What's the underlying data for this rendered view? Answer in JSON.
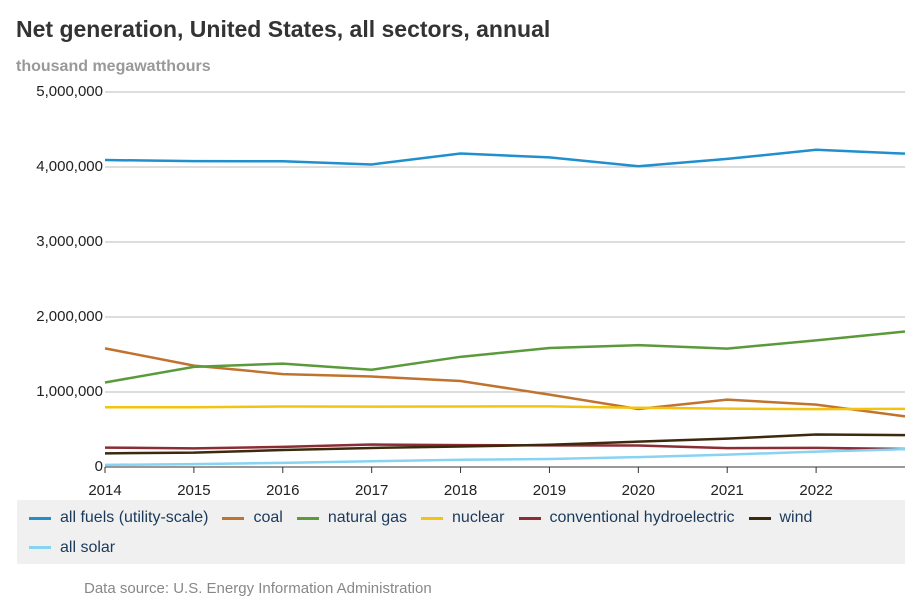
{
  "chart_data": {
    "type": "line",
    "title": "Net generation, United States, all sectors, annual",
    "subtitle": "thousand megawatthours",
    "source": "Data source: U.S. Energy Information Administration",
    "x": [
      2014,
      2015,
      2016,
      2017,
      2018,
      2019,
      2020,
      2021,
      2022,
      2023
    ],
    "xlim": [
      2014,
      2023
    ],
    "xticks": [
      2014,
      2015,
      2016,
      2017,
      2018,
      2019,
      2020,
      2021,
      2022
    ],
    "ylim": [
      0,
      5000000
    ],
    "yticks": [
      0,
      {
        "value": 1000000,
        "label": "1,000,000"
      },
      {
        "value": 2000000,
        "label": "2,000,000"
      },
      {
        "value": 3000000,
        "label": "3,000,000"
      },
      {
        "value": 4000000,
        "label": "4,000,000"
      },
      {
        "value": 5000000,
        "label": "5,000,000"
      }
    ],
    "grid": true,
    "series": [
      {
        "name": "all fuels (utility-scale)",
        "color": "#1f8fce",
        "values": [
          4093000,
          4078000,
          4077000,
          4034000,
          4180000,
          4128000,
          4010000,
          4108000,
          4230000,
          4178000
        ]
      },
      {
        "name": "coal",
        "color": "#c0732e",
        "values": [
          1582000,
          1352000,
          1239000,
          1206000,
          1146000,
          965000,
          773000,
          898000,
          832000,
          675000
        ]
      },
      {
        "name": "natural gas",
        "color": "#5a9a3a",
        "values": [
          1127000,
          1335000,
          1379000,
          1297000,
          1469000,
          1586000,
          1625000,
          1579000,
          1689000,
          1806000
        ]
      },
      {
        "name": "nuclear",
        "color": "#f2c40f",
        "values": [
          797000,
          797000,
          806000,
          805000,
          807000,
          809000,
          790000,
          778000,
          772000,
          775000
        ]
      },
      {
        "name": "conventional hydroelectric",
        "color": "#8b2d35",
        "values": [
          259000,
          249000,
          268000,
          300000,
          292000,
          288000,
          286000,
          251000,
          255000,
          240000
        ]
      },
      {
        "name": "wind",
        "color": "#3d2a0e",
        "values": [
          182000,
          191000,
          227000,
          254000,
          273000,
          296000,
          338000,
          378000,
          434000,
          425000
        ]
      },
      {
        "name": "all solar",
        "color": "#87d3f2",
        "values": [
          28000,
          39000,
          55000,
          77000,
          96000,
          107000,
          132000,
          165000,
          205000,
          238000
        ]
      }
    ]
  }
}
